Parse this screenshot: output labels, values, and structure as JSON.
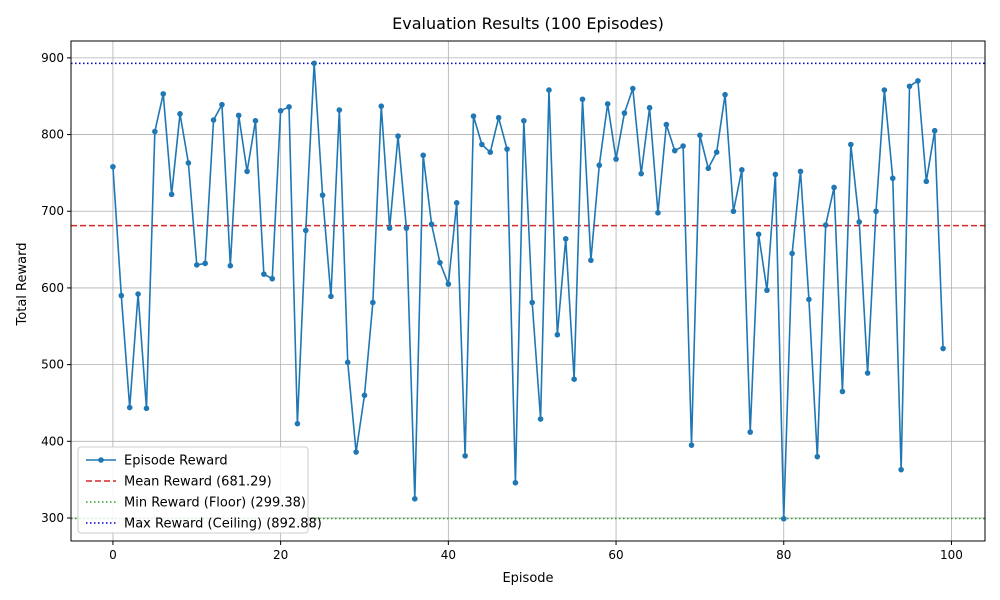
{
  "chart_data": {
    "type": "line",
    "title": "Evaluation Results (100 Episodes)",
    "xlabel": "Episode",
    "ylabel": "Total Reward",
    "xlim": [
      -5,
      104
    ],
    "ylim": [
      270,
      922
    ],
    "x_ticks": [
      0,
      20,
      40,
      60,
      80,
      100
    ],
    "y_ticks": [
      300,
      400,
      500,
      600,
      700,
      800,
      900
    ],
    "grid": true,
    "legend_position": "lower-left",
    "series": [
      {
        "name": "Episode Reward",
        "color": "#1f77b4",
        "marker": "circle",
        "x": [
          0,
          1,
          2,
          3,
          4,
          5,
          6,
          7,
          8,
          9,
          10,
          11,
          12,
          13,
          14,
          15,
          16,
          17,
          18,
          19,
          20,
          21,
          22,
          23,
          24,
          25,
          26,
          27,
          28,
          29,
          30,
          31,
          32,
          33,
          34,
          35,
          36,
          37,
          38,
          39,
          40,
          41,
          42,
          43,
          44,
          45,
          46,
          47,
          48,
          49,
          50,
          51,
          52,
          53,
          54,
          55,
          56,
          57,
          58,
          59,
          60,
          61,
          62,
          63,
          64,
          65,
          66,
          67,
          68,
          69,
          70,
          71,
          72,
          73,
          74,
          75,
          76,
          77,
          78,
          79,
          80,
          81,
          82,
          83,
          84,
          85,
          86,
          87,
          88,
          89,
          90,
          91,
          92,
          93,
          94,
          95,
          96,
          97,
          98,
          99
        ],
        "values": [
          758,
          590,
          444,
          592,
          443,
          804,
          853,
          722,
          827,
          763,
          630,
          632,
          819,
          839,
          629,
          825,
          752,
          818,
          618,
          612,
          831,
          836,
          423,
          675,
          893,
          721,
          589,
          832,
          503,
          386,
          460,
          581,
          837,
          678,
          798,
          678,
          325,
          773,
          683,
          633,
          605,
          711,
          381,
          824,
          787,
          777,
          822,
          781,
          346,
          818,
          581,
          429,
          858,
          539,
          664,
          481,
          846,
          636,
          760,
          840,
          768,
          828,
          860,
          749,
          835,
          698,
          813,
          779,
          785,
          395,
          799,
          756,
          777,
          852,
          700,
          754,
          412,
          670,
          597,
          748,
          299,
          645,
          752,
          585,
          380,
          682,
          731,
          465,
          787,
          686,
          489,
          700,
          858,
          743,
          363,
          863,
          870,
          739,
          805,
          521
        ]
      },
      {
        "name": "Mean Reward (681.29)",
        "color": "#d62728",
        "style": "dashed",
        "value": 681.29
      },
      {
        "name": "Min Reward (Floor) (299.38)",
        "color": "#2ca02c",
        "style": "dotted",
        "value": 299.38
      },
      {
        "name": "Max Reward (Ceiling) (892.88)",
        "color": "#0000cc",
        "style": "dotted",
        "value": 892.88
      }
    ]
  }
}
